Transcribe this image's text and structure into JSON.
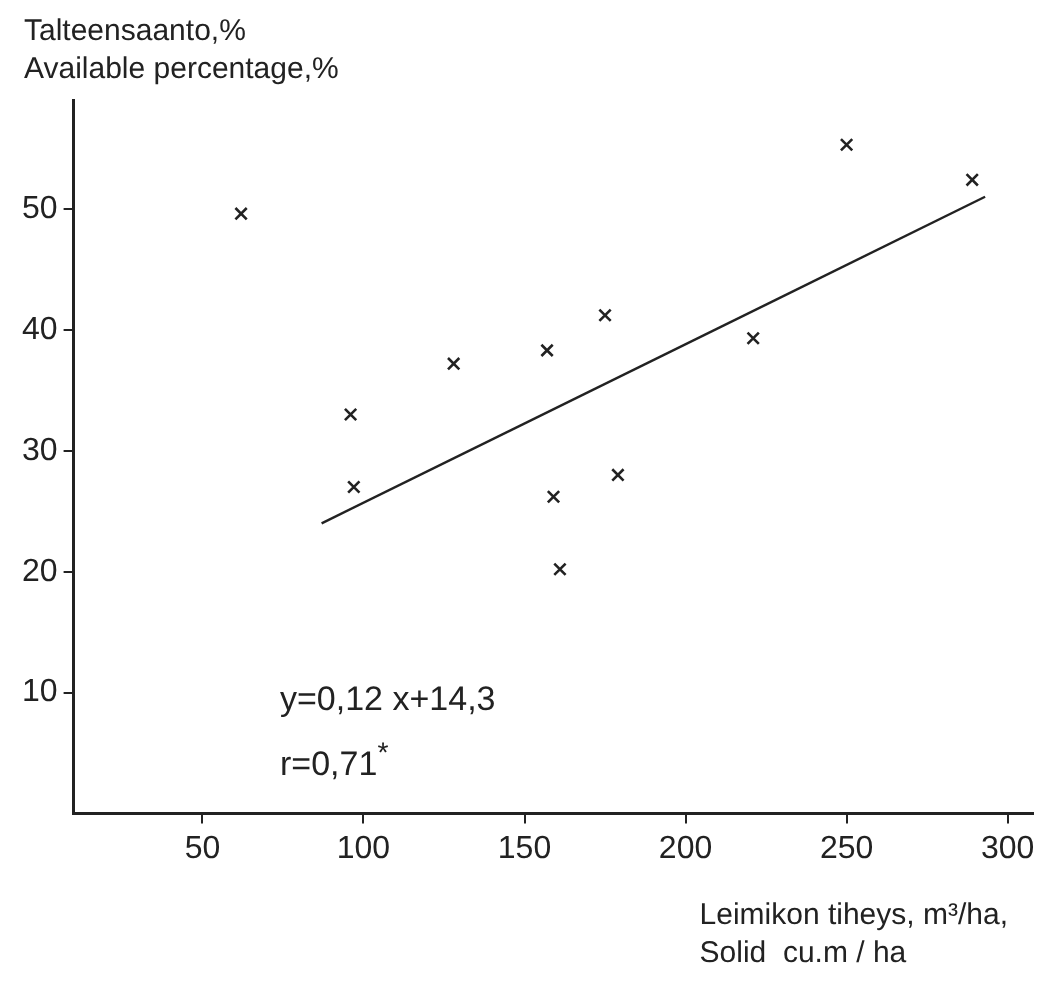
{
  "chart_data": {
    "type": "scatter",
    "xlabel": "Leimikon tiheys, m³/ha,\nSolid  cu.m / ha",
    "ylabel": "Talteensaanto,%\nAvailable percentage,%",
    "annotations": [
      "y=0,12 x+14,3",
      "r=0,71$^{*}$"
    ],
    "xlim": [
      10,
      308
    ],
    "ylim": [
      0,
      59
    ],
    "xticks": [
      50,
      100,
      150,
      200,
      250,
      300
    ],
    "yticks": [
      10,
      20,
      30,
      40,
      50
    ],
    "grid": false,
    "legend": false,
    "marker": "cross",
    "series": [
      {
        "color": "#222222",
        "x": [
          62,
          250,
          289,
          175,
          157,
          128,
          221,
          96,
          97,
          179,
          159,
          161
        ],
        "values": [
          49.6,
          55.3,
          52.4,
          41.2,
          38.3,
          37.2,
          39.3,
          33,
          27,
          28,
          26.2,
          20.2
        ]
      },
      {
        "type": "line",
        "color": "#222222",
        "x": [
          87,
          293
        ],
        "values": [
          24,
          51
        ],
        "marker": "none",
        "line_style": "solid"
      }
    ]
  }
}
